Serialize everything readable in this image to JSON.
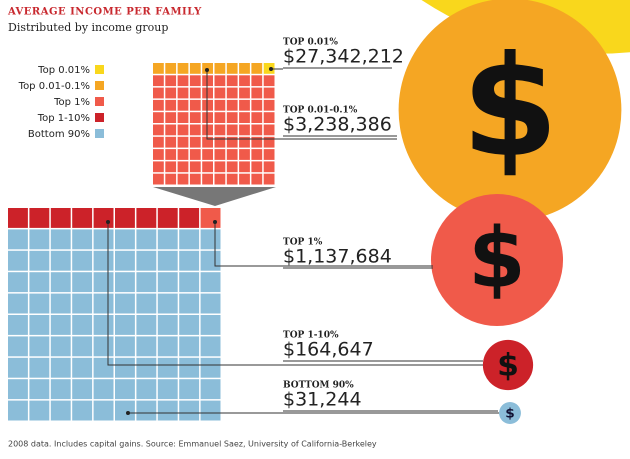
{
  "chart_data": {
    "type": "bubble",
    "title": "AVERAGE INCOME PER FAMILY",
    "subtitle": "Distributed by income group",
    "categories": [
      "Top 0.01%",
      "Top 0.01-0.1%",
      "Top 1%",
      "Top 1-10%",
      "Bottom 90%"
    ],
    "values": [
      27342212,
      3238386,
      1137684,
      164647,
      31244
    ],
    "value_labels": [
      "$27,342,212",
      "$3,238,386",
      "$1,137,684",
      "$164,647",
      "$31,244"
    ],
    "colors": [
      "#f9d71c",
      "#f5a623",
      "#f05a4a",
      "#cc2229",
      "#8bbdd9"
    ],
    "symbol": "$",
    "source": "2008 data. Includes capital gains. Source: Emmanuel Saez, University of California-Berkeley"
  }
}
